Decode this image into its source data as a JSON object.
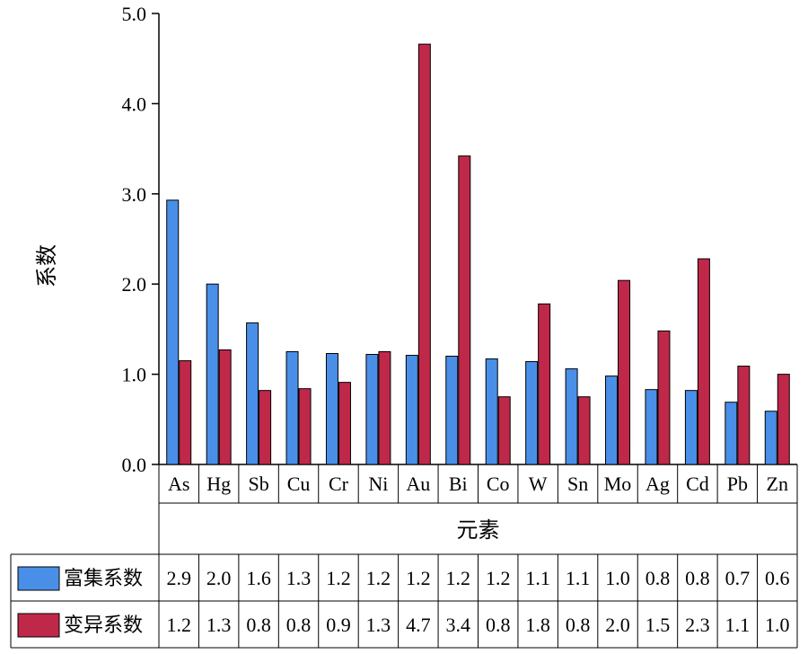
{
  "chart_data": {
    "type": "bar",
    "xlabel": "元素",
    "ylabel": "系数",
    "ylim": [
      0,
      5
    ],
    "yticks": [
      "0.0",
      "1.0",
      "2.0",
      "3.0",
      "4.0",
      "5.0"
    ],
    "grid": false,
    "categories": [
      "As",
      "Hg",
      "Sb",
      "Cu",
      "Cr",
      "Ni",
      "Au",
      "Bi",
      "Co",
      "W",
      "Sn",
      "Mo",
      "Ag",
      "Cd",
      "Pb",
      "Zn"
    ],
    "series": [
      {
        "name": "富集系数",
        "color": "#4a8fe7",
        "values": [
          2.93,
          2.0,
          1.57,
          1.25,
          1.23,
          1.22,
          1.21,
          1.2,
          1.17,
          1.14,
          1.06,
          0.98,
          0.83,
          0.82,
          0.69,
          0.59
        ],
        "table_values": [
          "2.9",
          "2.0",
          "1.6",
          "1.3",
          "1.2",
          "1.2",
          "1.2",
          "1.2",
          "1.2",
          "1.1",
          "1.1",
          "1.0",
          "0.8",
          "0.8",
          "0.7",
          "0.6"
        ]
      },
      {
        "name": "变异系数",
        "color": "#c0284a",
        "values": [
          1.15,
          1.27,
          0.82,
          0.84,
          0.91,
          1.25,
          4.66,
          3.42,
          0.75,
          1.78,
          0.75,
          2.04,
          1.48,
          2.28,
          1.09,
          1.0
        ],
        "table_values": [
          "1.2",
          "1.3",
          "0.8",
          "0.8",
          "0.9",
          "1.3",
          "4.7",
          "3.4",
          "0.8",
          "1.8",
          "0.8",
          "2.0",
          "1.5",
          "2.3",
          "1.1",
          "1.0"
        ]
      }
    ],
    "legend": "data-table-left"
  }
}
